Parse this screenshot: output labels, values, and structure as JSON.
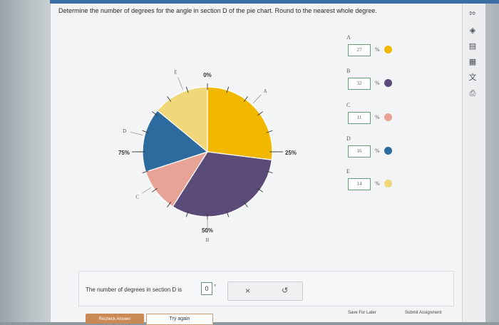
{
  "question": "Determine the number of degrees for the angle in section D of the pie chart. Round to the nearest whole degree.",
  "chart_data": {
    "type": "pie",
    "title": "",
    "scale_labels": [
      "0%",
      "25%",
      "50%",
      "75%"
    ],
    "slices": [
      {
        "label": "A",
        "value": 27,
        "color": "#f2b800"
      },
      {
        "label": "B",
        "value": 32,
        "color": "#5a4b78"
      },
      {
        "label": "C",
        "value": 11,
        "color": "#e8a397"
      },
      {
        "label": "D",
        "value": 16,
        "color": "#2d6a9d"
      },
      {
        "label": "E",
        "value": 14,
        "color": "#efd77a"
      }
    ]
  },
  "legend": [
    {
      "label": "A",
      "value": "27",
      "pct": "%",
      "color": "#f2b800"
    },
    {
      "label": "B",
      "value": "32",
      "pct": "%",
      "color": "#5a4b78"
    },
    {
      "label": "C",
      "value": "11",
      "pct": "%",
      "color": "#e8a397"
    },
    {
      "label": "D",
      "value": "16",
      "pct": "%",
      "color": "#2d6a9d"
    },
    {
      "label": "E",
      "value": "14",
      "pct": "%",
      "color": "#efd77a"
    }
  ],
  "answer": {
    "prompt": "The number of degrees in section D is",
    "value": "0",
    "unit": "°"
  },
  "buttons": {
    "clear": "×",
    "undo": "↺",
    "recheck": "Recheck Answer",
    "try_again": "Try again",
    "save_later": "Save For Later",
    "submit": "Submit Assignment"
  },
  "rail_icons": [
    "expand-icon",
    "check-circle-icon",
    "ebook-icon",
    "calculator-icon",
    "translate-icon",
    "print-icon"
  ]
}
